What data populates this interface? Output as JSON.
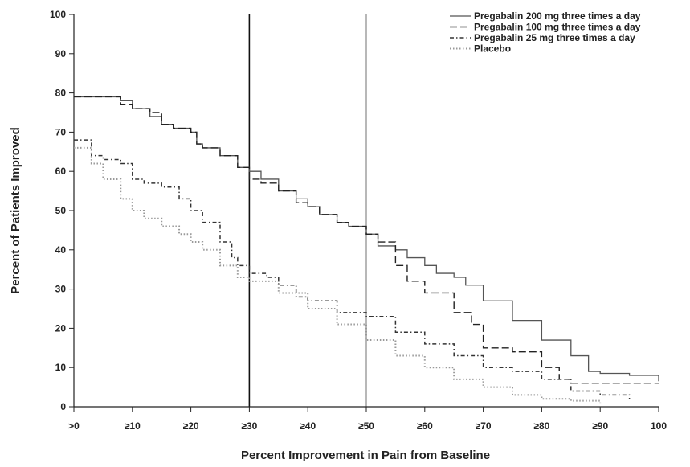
{
  "chart_data": {
    "type": "line",
    "title": "",
    "xlabel": "Percent Improvement in Pain from Baseline",
    "ylabel": "Percent of Patients Improved",
    "xlim": [
      0,
      100
    ],
    "ylim": [
      0,
      100
    ],
    "x_tick_values": [
      0,
      10,
      20,
      30,
      40,
      50,
      60,
      70,
      80,
      90,
      100
    ],
    "x_tick_labels": [
      ">0",
      "≥10",
      "≥20",
      "≥30",
      "≥40",
      "≥50",
      "≥60",
      "≥70",
      "≥80",
      "≥90",
      "100"
    ],
    "y_ticks": [
      0,
      10,
      20,
      30,
      40,
      50,
      60,
      70,
      80,
      90,
      100
    ],
    "reference_lines_x": [
      30,
      50
    ],
    "grid": false,
    "legend_position": "top-right",
    "series": [
      {
        "name": "Pregabalin 200 mg three times a day",
        "style": "solid",
        "color": "#555555",
        "x": [
          0,
          5,
          8,
          10,
          13,
          15,
          17,
          20,
          21,
          22,
          25,
          28,
          30,
          32,
          35,
          38,
          40,
          42,
          45,
          47,
          50,
          52,
          55,
          57,
          60,
          62,
          65,
          67,
          70,
          75,
          80,
          85,
          88,
          90,
          95,
          100
        ],
        "y": [
          79,
          79,
          78,
          76,
          74,
          72,
          71,
          70,
          67,
          66,
          64,
          61,
          60,
          58,
          55,
          53,
          51,
          49,
          47,
          46,
          44,
          41,
          40,
          38,
          36,
          34,
          33,
          31,
          27,
          22,
          17,
          13,
          9,
          8.5,
          8,
          6.5
        ]
      },
      {
        "name": "Pregabalin 100 mg three times a day",
        "style": "dashed",
        "color": "#222222",
        "x": [
          0,
          5,
          8,
          10,
          13,
          15,
          17,
          20,
          21,
          22,
          25,
          28,
          30,
          32,
          35,
          38,
          40,
          42,
          45,
          47,
          50,
          52,
          55,
          57,
          60,
          65,
          68,
          70,
          75,
          78,
          80,
          83,
          85,
          90,
          95,
          100
        ],
        "y": [
          79,
          79,
          77,
          76,
          75,
          72,
          71,
          70,
          67,
          66,
          64,
          61,
          58,
          57,
          55,
          52,
          51,
          49,
          47,
          46,
          44,
          42,
          36,
          32,
          29,
          24,
          21,
          15,
          14,
          14,
          10,
          7,
          6,
          6,
          6,
          6
        ]
      },
      {
        "name": "Pregabalin 25 mg three times a day",
        "style": "dashdot",
        "color": "#333333",
        "x": [
          0,
          3,
          5,
          8,
          10,
          12,
          15,
          18,
          20,
          22,
          25,
          27,
          28,
          30,
          33,
          35,
          38,
          40,
          45,
          50,
          55,
          60,
          65,
          70,
          75,
          80,
          85,
          90,
          95
        ],
        "y": [
          68,
          64,
          63,
          62,
          58,
          57,
          56,
          53,
          50,
          47,
          42,
          38,
          36,
          34,
          33,
          31,
          28,
          27,
          24,
          23,
          19,
          16,
          13,
          10,
          9,
          7,
          4,
          3,
          2
        ]
      },
      {
        "name": "Placebo",
        "style": "dotted",
        "color": "#999999",
        "x": [
          0,
          3,
          5,
          8,
          10,
          12,
          15,
          18,
          20,
          22,
          25,
          28,
          30,
          35,
          40,
          45,
          50,
          55,
          60,
          65,
          70,
          75,
          80,
          85,
          90
        ],
        "y": [
          66,
          62,
          58,
          53,
          50,
          48,
          46,
          44,
          42,
          40,
          36,
          33,
          32,
          29,
          25,
          21,
          17,
          13,
          10,
          7,
          5,
          3,
          2,
          1.5,
          1
        ]
      }
    ]
  }
}
